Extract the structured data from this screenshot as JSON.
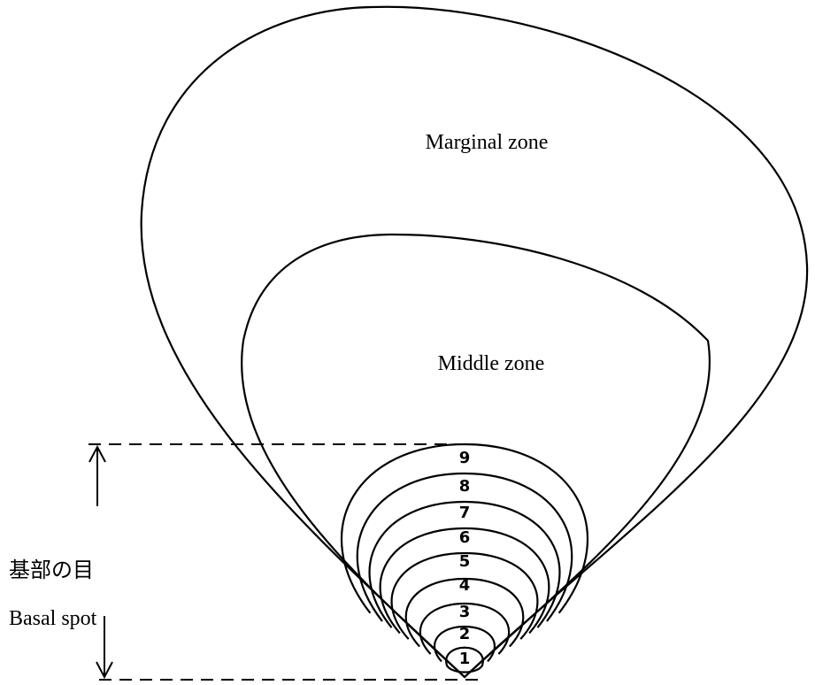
{
  "labels": {
    "marginal_zone": "Marginal zone",
    "middle_zone": "Middle zone",
    "basal_spot_ja": "基部の目",
    "basal_spot": "Basal spot"
  },
  "rings": [
    "1",
    "2",
    "3",
    "4",
    "5",
    "6",
    "7",
    "8",
    "9"
  ]
}
